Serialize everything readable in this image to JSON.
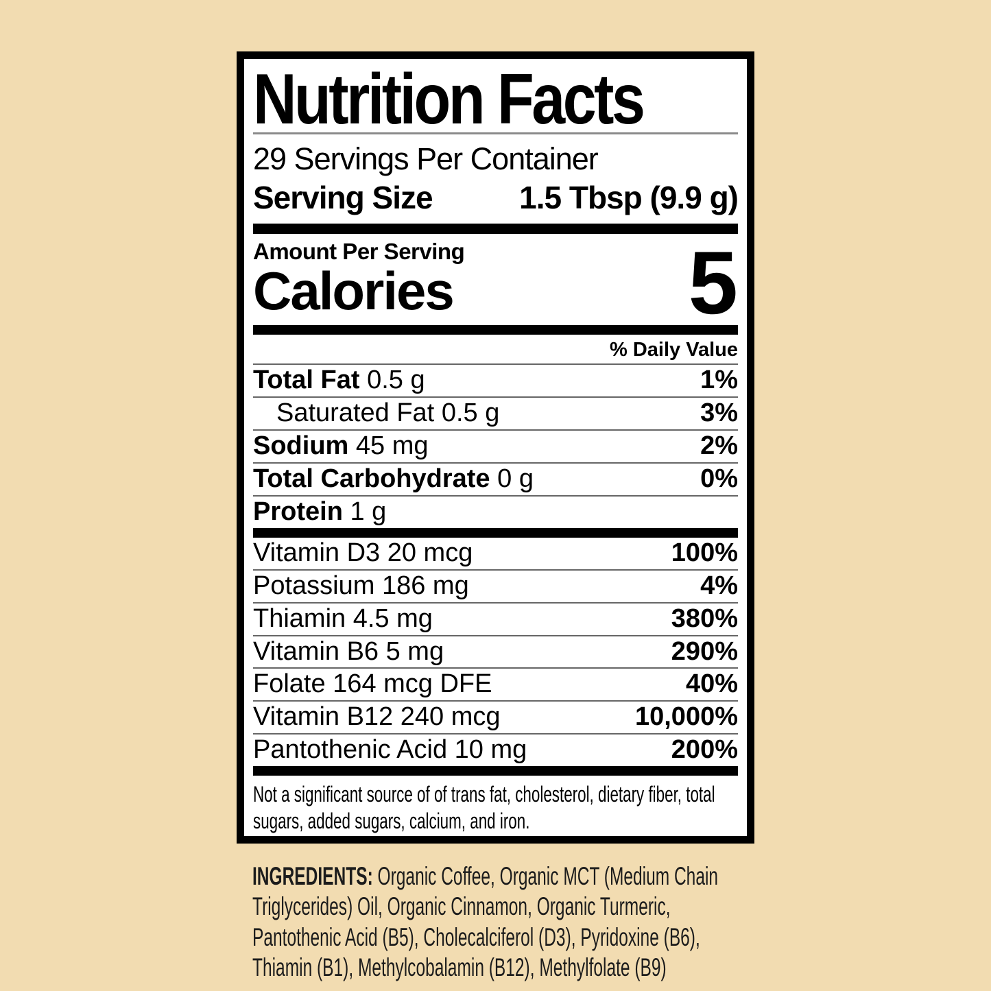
{
  "colors": {
    "page_background": "#f2dcb1",
    "label_background": "#ffffff",
    "label_border": "#000000",
    "hairline_gray": "#666666"
  },
  "label": {
    "title": "Nutrition Facts",
    "servings_per_container": "29 Servings Per Container",
    "serving_size_label": "Serving Size",
    "serving_size_value": "1.5 Tbsp (9.9 g)",
    "amount_per_serving": "Amount Per Serving",
    "calories_label": "Calories",
    "calories_value": "5",
    "daily_value_header": "% Daily Value",
    "nutrients": [
      {
        "name": "Total Fat",
        "amount": "0.5 g",
        "dv": "1%",
        "bold": true,
        "indent": false
      },
      {
        "name": "Saturated Fat",
        "amount": "0.5 g",
        "dv": "3%",
        "bold": false,
        "indent": true
      },
      {
        "name": "Sodium",
        "amount": "45 mg",
        "dv": "2%",
        "bold": true,
        "indent": false
      },
      {
        "name": "Total Carbohydrate",
        "amount": "0 g",
        "dv": "0%",
        "bold": true,
        "indent": false
      },
      {
        "name": "Protein",
        "amount": "1 g",
        "dv": "",
        "bold": true,
        "indent": false
      }
    ],
    "vitamins": [
      {
        "name": "Vitamin D3 20 mcg",
        "dv": "100%"
      },
      {
        "name": "Potassium 186 mg",
        "dv": "4%"
      },
      {
        "name": "Thiamin 4.5 mg",
        "dv": "380%"
      },
      {
        "name": "Vitamin B6 5 mg",
        "dv": "290%"
      },
      {
        "name": "Folate 164 mcg DFE",
        "dv": "40%"
      },
      {
        "name": "Vitamin B12 240 mcg",
        "dv": "10,000%"
      },
      {
        "name": "Pantothenic Acid 10 mg",
        "dv": "200%"
      }
    ],
    "footnote": "Not a significant source of of trans fat, cholesterol, dietary fiber, total sugars, added sugars, calcium, and iron."
  },
  "ingredients": {
    "label": "INGREDIENTS:",
    "text": " Organic Coffee, Organic MCT (Medium Chain Triglycerides) Oil, Organic Cinnamon, Organic Turmeric, Pantothenic Acid (B5), Cholecalciferol (D3), Pyridoxine (B6), Thiamin (B1), Methylcobalamin (B12), Methylfolate (B9)"
  }
}
